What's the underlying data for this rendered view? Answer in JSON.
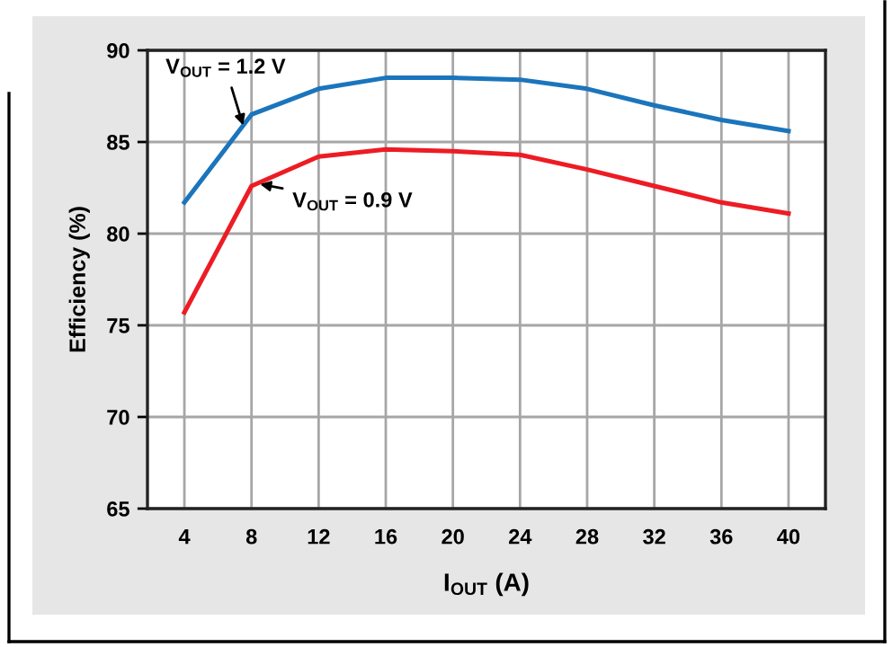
{
  "chart_data": {
    "type": "line",
    "xlabel": "I$_{OUT}$ (A)",
    "ylabel": "Efficiency (%)",
    "x": [
      4,
      8,
      12,
      16,
      20,
      24,
      28,
      32,
      36,
      40
    ],
    "series": [
      {
        "color": "#1b75bc",
        "values": [
          81.7,
          86.5,
          87.9,
          88.5,
          88.5,
          88.4,
          87.9,
          87.0,
          86.2,
          85.6
        ]
      },
      {
        "color": "#ed1c24",
        "values": [
          75.7,
          82.6,
          84.2,
          84.6,
          84.5,
          84.3,
          83.5,
          82.6,
          81.7,
          81.1
        ]
      }
    ],
    "xlim": [
      1.8,
      42.2
    ],
    "ylim": [
      65,
      90
    ],
    "xticks": [
      4,
      8,
      12,
      16,
      20,
      24,
      28,
      32,
      36,
      40
    ],
    "yticks": [
      65,
      70,
      75,
      80,
      85,
      90
    ],
    "grid": true,
    "marker": "none",
    "line_style": "solid",
    "annotations": [
      {
        "text": "V$_{OUT}$ = 1.2 V",
        "x": 7.5,
        "y": 85.9
      },
      {
        "text": "V$_{OUT}$ = 0.9 V",
        "x": 8.5,
        "y": 82.7
      }
    ]
  }
}
